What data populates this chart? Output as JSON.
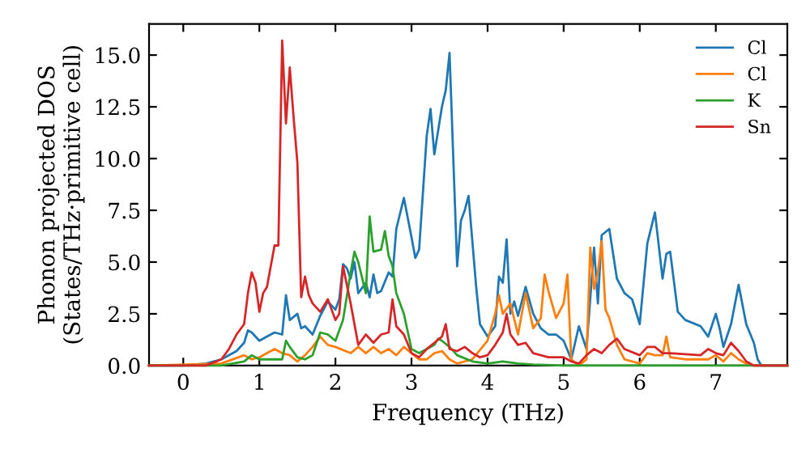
{
  "chart_data": {
    "type": "line",
    "xlabel": "Frequency (THz)",
    "ylabel": "Phonon projected DOS\n(States/THz·primitive cell)",
    "xlim": [
      -0.45,
      7.94
    ],
    "ylim": [
      0,
      16.5
    ],
    "xticks": [
      0,
      1,
      2,
      3,
      4,
      5,
      6,
      7
    ],
    "yticks": [
      {
        "value": 0,
        "label": "0.0"
      },
      {
        "value": 2.5,
        "label": "2.5"
      },
      {
        "value": 5,
        "label": "5.0"
      },
      {
        "value": 7.5,
        "label": "7.5"
      },
      {
        "value": 10,
        "label": "10.0"
      },
      {
        "value": 12.5,
        "label": "12.5"
      },
      {
        "value": 15,
        "label": "15.0"
      }
    ],
    "grid": false,
    "legend": "top right",
    "marker": "none",
    "line_style": "solid",
    "series": [
      {
        "name": "Cl",
        "color": "#1f77b4",
        "x": [
          -0.45,
          0,
          0.3,
          0.5,
          0.7,
          0.8,
          0.85,
          0.9,
          1.0,
          1.1,
          1.2,
          1.3,
          1.35,
          1.4,
          1.5,
          1.55,
          1.6,
          1.7,
          1.8,
          1.9,
          2.0,
          2.05,
          2.1,
          2.15,
          2.2,
          2.25,
          2.3,
          2.4,
          2.45,
          2.5,
          2.55,
          2.6,
          2.7,
          2.75,
          2.8,
          2.9,
          3.0,
          3.05,
          3.1,
          3.2,
          3.25,
          3.3,
          3.4,
          3.45,
          3.5,
          3.6,
          3.65,
          3.7,
          3.75,
          3.85,
          3.9,
          4.0,
          4.1,
          4.15,
          4.2,
          4.25,
          4.3,
          4.35,
          4.4,
          4.5,
          4.6,
          4.7,
          4.8,
          4.9,
          5.0,
          5.1,
          5.2,
          5.3,
          5.4,
          5.45,
          5.5,
          5.6,
          5.7,
          5.8,
          5.9,
          6.0,
          6.1,
          6.2,
          6.3,
          6.35,
          6.4,
          6.5,
          6.6,
          6.8,
          6.9,
          7.0,
          7.05,
          7.1,
          7.2,
          7.3,
          7.4,
          7.5,
          7.55,
          7.6,
          7.94
        ],
        "values": [
          0,
          0,
          0.1,
          0.3,
          0.7,
          1.1,
          1.7,
          1.6,
          1.2,
          1.4,
          1.6,
          1.5,
          3.4,
          2.2,
          2.5,
          1.8,
          1.9,
          1.5,
          2.4,
          3.1,
          2.7,
          3.2,
          4.9,
          4.7,
          4.2,
          5.0,
          3.5,
          4.0,
          3.3,
          4.4,
          3.5,
          3.6,
          4.5,
          4.3,
          6.6,
          8.1,
          6.2,
          5.2,
          5.6,
          11.1,
          12.4,
          10.2,
          12.5,
          13.3,
          15.1,
          4.8,
          7.0,
          7.5,
          8.2,
          3.8,
          2.0,
          1.4,
          1.9,
          4.3,
          4.0,
          6.1,
          2.5,
          3.1,
          2.4,
          3.8,
          2.5,
          1.8,
          1.5,
          1.5,
          1.2,
          0.3,
          1.9,
          0.8,
          5.7,
          3.0,
          6.3,
          6.6,
          4.2,
          3.5,
          3.2,
          2.0,
          5.9,
          7.4,
          4.2,
          5.4,
          5.5,
          2.6,
          2.2,
          1.9,
          1.4,
          2.5,
          1.8,
          0.9,
          2.0,
          3.9,
          2.0,
          1.1,
          0.3,
          0,
          0
        ]
      },
      {
        "name": "Cl",
        "color": "#ff7f0e",
        "x": [
          -0.45,
          0.5,
          0.8,
          0.9,
          1.0,
          1.1,
          1.2,
          1.3,
          1.4,
          1.5,
          1.6,
          1.7,
          1.8,
          1.9,
          2.0,
          2.2,
          2.3,
          2.4,
          2.5,
          2.6,
          2.7,
          2.8,
          2.9,
          3.0,
          3.1,
          3.2,
          3.3,
          3.4,
          3.5,
          3.6,
          3.8,
          4.0,
          4.1,
          4.15,
          4.2,
          4.3,
          4.4,
          4.5,
          4.6,
          4.7,
          4.75,
          4.8,
          4.9,
          5.0,
          5.05,
          5.1,
          5.2,
          5.3,
          5.35,
          5.4,
          5.45,
          5.5,
          5.55,
          5.6,
          5.7,
          5.8,
          6.0,
          6.1,
          6.2,
          6.3,
          6.35,
          6.4,
          6.6,
          6.9,
          7.0,
          7.1,
          7.2,
          7.3,
          7.4,
          7.5,
          7.94
        ],
        "values": [
          0,
          0.1,
          0.5,
          0.3,
          0.4,
          0.6,
          0.8,
          0.6,
          0.5,
          0.2,
          0.5,
          0.9,
          1.4,
          1.0,
          0.9,
          0.6,
          0.9,
          0.6,
          0.9,
          0.6,
          0.8,
          0.5,
          0.9,
          0.6,
          0.3,
          0.3,
          0.6,
          0.7,
          0.3,
          0.1,
          0.3,
          1.2,
          2.5,
          3.4,
          2.5,
          3.0,
          1.5,
          3.5,
          1.8,
          2.3,
          4.4,
          3.6,
          2.3,
          3.0,
          4.4,
          0.3,
          0,
          0.3,
          5.7,
          3.7,
          4.5,
          6.0,
          2.7,
          2.3,
          1.0,
          0.3,
          0.1,
          0.6,
          0.5,
          0.5,
          1.4,
          0.4,
          0.3,
          0.3,
          0.5,
          0.2,
          0.6,
          0.3,
          0.1,
          0,
          0
        ]
      },
      {
        "name": "K",
        "color": "#2ca02c",
        "x": [
          -0.45,
          0.5,
          0.8,
          0.9,
          1.0,
          1.2,
          1.3,
          1.35,
          1.4,
          1.5,
          1.6,
          1.7,
          1.8,
          1.9,
          2.0,
          2.1,
          2.2,
          2.25,
          2.3,
          2.4,
          2.45,
          2.5,
          2.6,
          2.65,
          2.7,
          2.75,
          2.8,
          2.9,
          3.0,
          3.1,
          3.2,
          3.3,
          3.35,
          3.4,
          3.5,
          3.6,
          3.8,
          4.0,
          4.2,
          4.4,
          4.6,
          5.0,
          7.94
        ],
        "values": [
          0,
          0,
          0.2,
          0.5,
          0.3,
          0.3,
          0.3,
          1.2,
          0.9,
          0.4,
          0.3,
          0.5,
          1.6,
          1.5,
          1.2,
          2.2,
          4.5,
          5.5,
          5.0,
          3.5,
          7.2,
          5.5,
          5.6,
          6.5,
          5.3,
          4.8,
          3.5,
          2.5,
          0.8,
          0.6,
          0.8,
          1.0,
          1.3,
          1.2,
          0.9,
          0.5,
          0.2,
          0.1,
          0.2,
          0.1,
          0.05,
          0,
          0
        ]
      },
      {
        "name": "Sn",
        "color": "#d62728",
        "x": [
          -0.45,
          0.3,
          0.5,
          0.6,
          0.7,
          0.8,
          0.85,
          0.9,
          0.95,
          1.0,
          1.05,
          1.1,
          1.2,
          1.25,
          1.3,
          1.35,
          1.4,
          1.45,
          1.5,
          1.55,
          1.6,
          1.65,
          1.7,
          1.8,
          1.9,
          2.0,
          2.05,
          2.1,
          2.2,
          2.3,
          2.4,
          2.5,
          2.6,
          2.7,
          2.75,
          2.8,
          2.9,
          3.0,
          3.1,
          3.2,
          3.3,
          3.4,
          3.45,
          3.5,
          3.6,
          3.7,
          3.8,
          3.9,
          4.0,
          4.1,
          4.2,
          4.25,
          4.3,
          4.4,
          4.5,
          4.6,
          4.8,
          5.0,
          5.1,
          5.2,
          5.3,
          5.4,
          5.5,
          5.6,
          5.7,
          5.8,
          6.0,
          6.1,
          6.2,
          6.3,
          6.4,
          6.8,
          6.9,
          7.0,
          7.1,
          7.2,
          7.3,
          7.4,
          7.5,
          7.94
        ],
        "values": [
          0,
          0,
          0.3,
          0.8,
          1.5,
          2.0,
          3.5,
          4.5,
          4.0,
          2.6,
          3.5,
          3.8,
          5.8,
          5.8,
          15.7,
          11.7,
          14.4,
          12.0,
          9.8,
          3.3,
          4.3,
          3.4,
          3.0,
          2.6,
          3.2,
          2.2,
          2.5,
          4.8,
          3.0,
          1.0,
          1.5,
          1.1,
          1.5,
          1.6,
          3.2,
          1.9,
          1.5,
          0.6,
          0.4,
          0.8,
          1.1,
          1.4,
          2.0,
          0.8,
          0.7,
          0.9,
          0.6,
          0.4,
          0.5,
          1.0,
          1.6,
          2.5,
          1.5,
          1.0,
          1.1,
          0.6,
          0.4,
          0.4,
          0.2,
          0.1,
          0.5,
          0.8,
          0.6,
          1.0,
          1.3,
          0.8,
          0.5,
          0.9,
          0.9,
          0.6,
          0.6,
          0.5,
          0.8,
          0.6,
          0.5,
          1.1,
          0.7,
          0.2,
          0,
          0
        ]
      }
    ]
  }
}
